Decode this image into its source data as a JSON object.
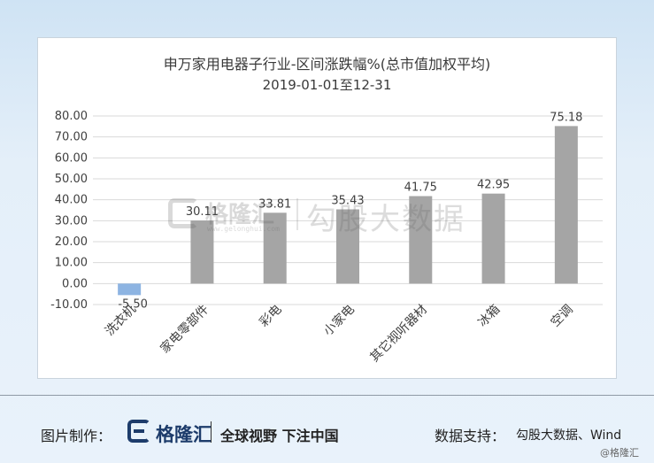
{
  "chart_data": {
    "type": "bar",
    "title": "申万家用电器子行业-区间涨跌幅%(总市值加权平均)",
    "subtitle": "2019-01-01至12-31",
    "categories": [
      "洗衣机",
      "家电零部件",
      "彩电",
      "小家电",
      "其它视听器材",
      "冰箱",
      "空调"
    ],
    "values": [
      -5.5,
      30.11,
      33.81,
      35.43,
      41.75,
      42.95,
      75.18
    ],
    "value_labels": [
      "-5.50",
      "30.11",
      "33.81",
      "35.43",
      "41.75",
      "42.95",
      "75.18"
    ],
    "yticks": [
      "80.00",
      "70.00",
      "60.00",
      "50.00",
      "40.00",
      "30.00",
      "20.00",
      "10.00",
      "0.00",
      "-10.00"
    ],
    "ylim": [
      -10,
      80
    ],
    "grid": true,
    "colors": {
      "positive": "#a5a5a5",
      "negative": "#8db4e2",
      "grid": "#d9d9d9",
      "text": "#404040"
    }
  },
  "watermark": {
    "brand": "格隆汇",
    "url": "www.gelonghui.com",
    "product": "勾股大数据"
  },
  "footer": {
    "made_by_label": "图片制作：",
    "brand": "格隆汇",
    "slogan": "全球视野 下注中国",
    "support_label": "数据支持：",
    "source": "勾股大数据、Wind",
    "corner_mark": "@格隆汇"
  }
}
